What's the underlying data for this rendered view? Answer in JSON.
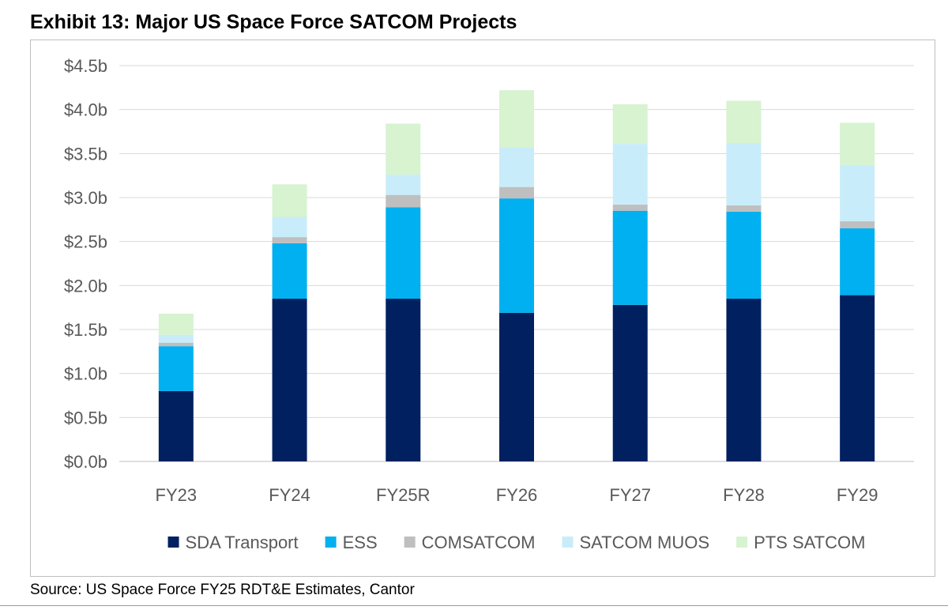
{
  "exhibit": {
    "title": "Exhibit 13: Major US Space Force SATCOM Projects",
    "source": "Source: US Space Force FY25 RDT&E Estimates, Cantor"
  },
  "chart_data": {
    "type": "bar",
    "stacked": true,
    "title": "",
    "xlabel": "",
    "ylabel": "",
    "ylim": [
      0,
      4.5
    ],
    "y_ticks": [
      0,
      0.5,
      1.0,
      1.5,
      2.0,
      2.5,
      3.0,
      3.5,
      4.0,
      4.5
    ],
    "y_tick_labels": [
      "$0.0b",
      "$0.5b",
      "$1.0b",
      "$1.5b",
      "$2.0b",
      "$2.5b",
      "$3.0b",
      "$3.5b",
      "$4.0b",
      "$4.5b"
    ],
    "grid": true,
    "legend_position": "bottom",
    "categories": [
      "FY23",
      "FY24",
      "FY25R",
      "FY26",
      "FY27",
      "FY28",
      "FY29"
    ],
    "series": [
      {
        "name": "SDA Transport",
        "color": "#002060",
        "values": [
          0.8,
          1.85,
          1.85,
          1.69,
          1.78,
          1.85,
          1.89
        ]
      },
      {
        "name": "ESS",
        "color": "#00b0f0",
        "values": [
          0.51,
          0.63,
          1.04,
          1.3,
          1.07,
          0.99,
          0.76
        ]
      },
      {
        "name": "COMSATCOM",
        "color": "#bfbfbf",
        "values": [
          0.04,
          0.07,
          0.14,
          0.13,
          0.07,
          0.07,
          0.08
        ]
      },
      {
        "name": "SATCOM MUOS",
        "color": "#c9ecfa",
        "values": [
          0.09,
          0.23,
          0.23,
          0.45,
          0.69,
          0.71,
          0.64
        ]
      },
      {
        "name": "PTS SATCOM",
        "color": "#d7f3d0",
        "values": [
          0.24,
          0.37,
          0.58,
          0.65,
          0.45,
          0.48,
          0.48
        ]
      }
    ]
  }
}
